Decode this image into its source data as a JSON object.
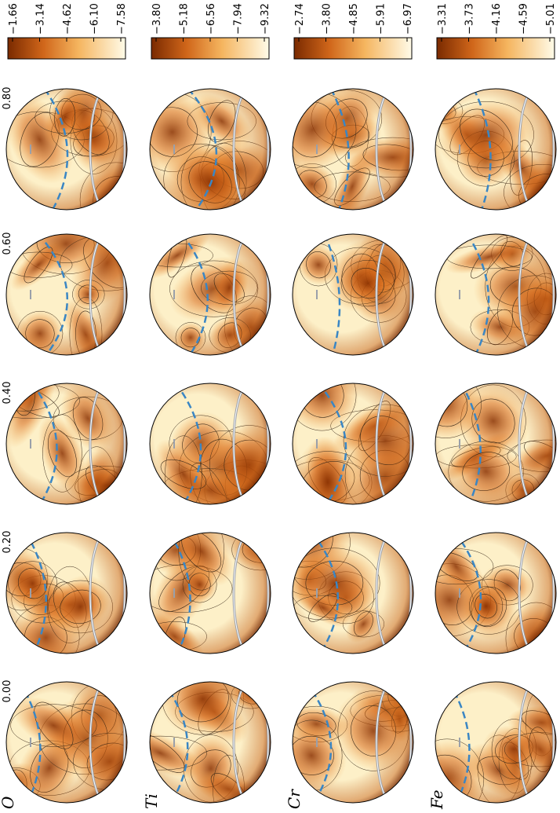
{
  "phase_labels": [
    "0.00",
    "0.20",
    "0.40",
    "0.60",
    "0.80"
  ],
  "panels": [
    {
      "element": "O",
      "colorbar_ticks": [
        "−1.66",
        "−3.14",
        "−4.62",
        "−6.10",
        "−7.58"
      ]
    },
    {
      "element": "Ti",
      "colorbar_ticks": [
        "−3.80",
        "−5.18",
        "−6.56",
        "−7.94",
        "−9.32"
      ]
    },
    {
      "element": "Cr",
      "colorbar_ticks": [
        "−2.74",
        "−3.80",
        "−4.85",
        "−5.91",
        "−6.97"
      ]
    },
    {
      "element": "Fe",
      "colorbar_ticks": [
        "−3.31",
        "−3.73",
        "−4.16",
        "−4.59",
        "−5.01"
      ]
    }
  ]
}
